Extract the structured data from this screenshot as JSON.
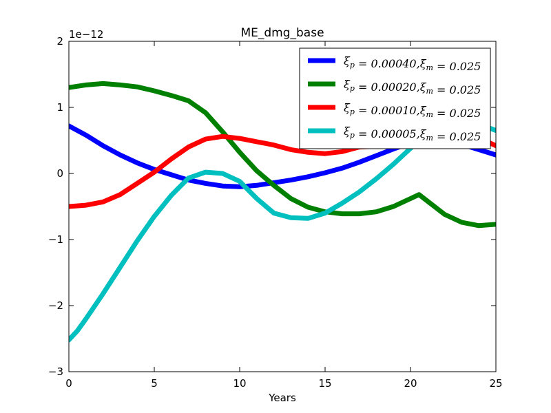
{
  "chart_data": {
    "type": "line",
    "title": "ME_dmg_base",
    "xlabel": "Years",
    "ylabel": "",
    "y_scale_label": "1e−12",
    "xlim": [
      0,
      25
    ],
    "ylim": [
      -3,
      2
    ],
    "xticks": [
      0,
      5,
      10,
      15,
      20,
      25
    ],
    "yticks": [
      -3,
      -2,
      -1,
      0,
      1,
      2
    ],
    "xtick_labels": [
      "0",
      "5",
      "10",
      "15",
      "20",
      "25"
    ],
    "ytick_labels": [
      "−3",
      "−2",
      "−1",
      "0",
      "1",
      "2"
    ],
    "legend_position": "top-right",
    "grid": false,
    "series": [
      {
        "name": "ξ_p = 0.00040, ξ_m = 0.025",
        "legend_main": "ξ",
        "legend_sub": "p",
        "legend_rest": " = 0.00040,",
        "legend_main2": "ξ",
        "legend_sub2": "m",
        "legend_rest2": " = 0.025",
        "color": "#0000ff",
        "x": [
          0,
          1,
          2,
          3,
          4,
          5,
          6,
          7,
          8,
          9,
          10,
          11,
          12,
          13,
          14,
          15,
          16,
          17,
          18,
          19,
          20,
          21,
          22,
          23,
          24,
          25
        ],
        "y": [
          0.72,
          0.58,
          0.42,
          0.28,
          0.16,
          0.06,
          -0.02,
          -0.1,
          -0.15,
          -0.19,
          -0.2,
          -0.18,
          -0.14,
          -0.1,
          -0.05,
          0.01,
          0.08,
          0.17,
          0.27,
          0.37,
          0.46,
          0.5,
          0.5,
          0.44,
          0.36,
          0.28
        ]
      },
      {
        "name": "ξ_p = 0.00020, ξ_m = 0.025",
        "legend_main": "ξ",
        "legend_sub": "p",
        "legend_rest": " = 0.00020,",
        "legend_main2": "ξ",
        "legend_sub2": "m",
        "legend_rest2": " = 0.025",
        "color": "#008000",
        "x": [
          0,
          1,
          2,
          3,
          4,
          5,
          6,
          7,
          8,
          9,
          10,
          11,
          12,
          13,
          14,
          15,
          16,
          17,
          18,
          19,
          20,
          20.5,
          21,
          22,
          23,
          24,
          25
        ],
        "y": [
          1.3,
          1.34,
          1.36,
          1.34,
          1.31,
          1.25,
          1.18,
          1.1,
          0.92,
          0.63,
          0.32,
          0.04,
          -0.18,
          -0.38,
          -0.51,
          -0.58,
          -0.61,
          -0.61,
          -0.58,
          -0.5,
          -0.38,
          -0.32,
          -0.42,
          -0.62,
          -0.74,
          -0.79,
          -0.77
        ]
      },
      {
        "name": "ξ_p = 0.00010, ξ_m = 0.025",
        "legend_main": "ξ",
        "legend_sub": "p",
        "legend_rest": " = 0.00010,",
        "legend_main2": "ξ",
        "legend_sub2": "m",
        "legend_rest2": " = 0.025",
        "color": "#ff0000",
        "x": [
          0,
          1,
          2,
          3,
          4,
          5,
          6,
          7,
          8,
          9,
          10,
          11,
          12,
          13,
          14,
          15,
          16,
          17,
          24.5,
          25
        ],
        "y": [
          -0.5,
          -0.48,
          -0.43,
          -0.32,
          -0.15,
          0.02,
          0.22,
          0.4,
          0.52,
          0.56,
          0.53,
          0.48,
          0.43,
          0.36,
          0.32,
          0.3,
          0.33,
          0.4,
          0.48,
          0.42
        ]
      },
      {
        "name": "ξ_p = 0.00005, ξ_m = 0.025",
        "legend_main": "ξ",
        "legend_sub": "p",
        "legend_rest": " = 0.00005,",
        "legend_main2": "ξ",
        "legend_sub2": "m",
        "legend_rest2": " = 0.025",
        "color": "#00bfbf",
        "x": [
          0,
          0.5,
          1,
          2,
          3,
          4,
          5,
          6,
          7,
          8,
          9,
          10,
          11,
          12,
          13,
          14,
          15,
          16,
          17,
          18,
          19,
          20,
          21,
          24.5,
          25
        ],
        "y": [
          -2.52,
          -2.38,
          -2.2,
          -1.82,
          -1.42,
          -1.02,
          -0.65,
          -0.33,
          -0.07,
          0.02,
          0.0,
          -0.12,
          -0.38,
          -0.6,
          -0.67,
          -0.68,
          -0.6,
          -0.45,
          -0.28,
          -0.08,
          0.14,
          0.38,
          0.58,
          0.7,
          0.65
        ]
      }
    ]
  }
}
